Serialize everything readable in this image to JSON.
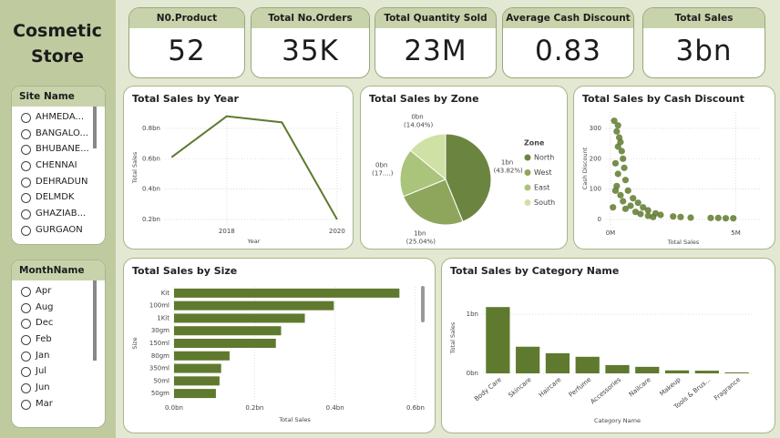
{
  "sidebar": {
    "title": "Cosmetic Store",
    "slicers": [
      {
        "title": "Site Name",
        "items": [
          "AHMEDA...",
          "BANGALO...",
          "BHUBANE...",
          "CHENNAI",
          "DEHRADUN",
          "DELMDK",
          "GHAZIAB...",
          "GURGAON"
        ]
      },
      {
        "title": "MonthName",
        "items": [
          "Apr",
          "Aug",
          "Dec",
          "Feb",
          "Jan",
          "Jul",
          "Jun",
          "Mar"
        ]
      }
    ]
  },
  "cards": [
    {
      "label": "N0.Product",
      "value": "52"
    },
    {
      "label": "Total No.Orders",
      "value": "35K"
    },
    {
      "label": "Total Quantity Sold",
      "value": "23M"
    },
    {
      "label": "Average Cash Discount",
      "value": "0.83"
    },
    {
      "label": "Total Sales",
      "value": "3bn"
    }
  ],
  "chart_data": [
    {
      "type": "line",
      "title": "Total Sales by Year",
      "x_label": "Year",
      "y_label": "Total Sales",
      "x": [
        2017,
        2018,
        2019,
        2020
      ],
      "values": [
        0.61,
        0.88,
        0.84,
        0.2
      ],
      "color": "#5f7a2e",
      "xlim": [
        2016.88,
        2020.1
      ],
      "xticks": [
        2018,
        2020
      ],
      "ylim": [
        0.176,
        0.908
      ],
      "yticks": [
        {
          "value": 0.2,
          "label": "0.2bn"
        },
        {
          "value": 0.4,
          "label": "0.4bn"
        },
        {
          "value": 0.6,
          "label": "0.6bn"
        },
        {
          "value": 0.8,
          "label": "0.8bn"
        }
      ],
      "grid": true
    },
    {
      "type": "pie",
      "title": "Total Sales by Zone",
      "legend_title": "Zone",
      "legend": "right",
      "categories": [
        "North",
        "West",
        "East",
        "South"
      ],
      "values": [
        43.82,
        25.04,
        17.1,
        14.04
      ],
      "value_labels": [
        "1bn (43.82%)",
        "1bn (25.04%)",
        "0bn (17....)",
        "0bn (14.04%)"
      ],
      "colors": [
        "#6b8540",
        "#8ea65c",
        "#aac47c",
        "#d0e1a6"
      ]
    },
    {
      "type": "scatter",
      "title": "Total Sales by Cash Discount",
      "x_label": "Total Sales",
      "y_label": "Cash Discount",
      "x": [
        0.15,
        0.3,
        0.25,
        0.35,
        0.4,
        0.3,
        0.45,
        0.5,
        0.2,
        0.55,
        0.3,
        0.6,
        0.25,
        0.7,
        0.4,
        0.9,
        0.5,
        1.1,
        0.8,
        1.3,
        0.6,
        1.5,
        1.0,
        1.8,
        1.2,
        2.0,
        1.5,
        2.5,
        2.8,
        3.2,
        4.0,
        4.3,
        4.6,
        4.9,
        1.7,
        0.1,
        0.2
      ],
      "values": [
        325,
        310,
        290,
        270,
        255,
        240,
        225,
        200,
        185,
        170,
        150,
        130,
        110,
        95,
        80,
        70,
        60,
        55,
        45,
        40,
        35,
        30,
        25,
        20,
        18,
        15,
        12,
        10,
        8,
        6,
        5,
        5,
        4,
        4,
        8,
        40,
        95
      ],
      "color": "#5f7a2e",
      "xlim": [
        -0.18,
        6.0
      ],
      "xticks": [
        {
          "value": 0,
          "label": "0M"
        },
        {
          "value": 5,
          "label": "5M"
        }
      ],
      "ylim": [
        -18,
        354
      ],
      "yticks": [
        0,
        100,
        200,
        300
      ],
      "grid": true
    },
    {
      "type": "hbar",
      "title": "Total Sales by Size",
      "x_label": "Total Sales",
      "y_label": "Size",
      "categories": [
        "Kit",
        "100ml",
        "1Kit",
        "30gm",
        "150ml",
        "80gm",
        "350ml",
        "50ml",
        "50gm"
      ],
      "values": [
        0.56,
        0.397,
        0.325,
        0.266,
        0.253,
        0.138,
        0.117,
        0.113,
        0.104
      ],
      "color": "#5f7a2e",
      "xlim": [
        0,
        0.6
      ],
      "xticks": [
        {
          "value": 0,
          "label": "0.0bn"
        },
        {
          "value": 0.2,
          "label": "0.2bn"
        },
        {
          "value": 0.4,
          "label": "0.4bn"
        },
        {
          "value": 0.6,
          "label": "0.6bn"
        }
      ],
      "grid": true
    },
    {
      "type": "bar",
      "title": "Total Sales by Category Name",
      "x_label": "Category Name",
      "y_label": "Total Sales",
      "categories": [
        "Body Care",
        "Skincare",
        "Haircare",
        "Perfume",
        "Accessories",
        "Nailcare",
        "Makeup",
        "Tools & Brus...",
        "Fragrance"
      ],
      "values": [
        1.12,
        0.45,
        0.34,
        0.28,
        0.14,
        0.11,
        0.05,
        0.045,
        0.015
      ],
      "color": "#5f7a2e",
      "ylim": [
        0,
        1.2
      ],
      "yticks": [
        {
          "value": 0,
          "label": "0bn"
        },
        {
          "value": 1,
          "label": "1bn"
        }
      ],
      "grid": true
    }
  ]
}
